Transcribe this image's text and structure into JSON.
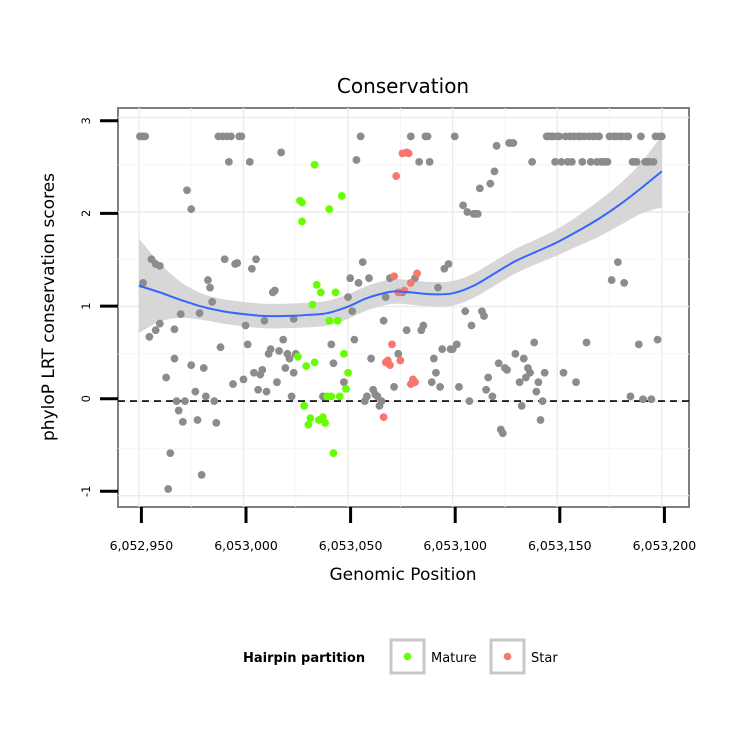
{
  "chart_data": {
    "type": "scatter",
    "title": "Conservation",
    "xlabel": "Genomic Position",
    "ylabel": "phyloP LRT conservation scores",
    "xlim": [
      6052940,
      6053213
    ],
    "ylim": [
      -1.12,
      3.1
    ],
    "x_ticks": [
      6052950,
      6053000,
      6053050,
      6053100,
      6053150,
      6053200
    ],
    "x_tick_labels": [
      "6,052,950",
      "6,053,000",
      "6,053,050",
      "6,053,100",
      "6,053,150",
      "6,053,200"
    ],
    "y_ticks": [
      -1,
      0,
      1,
      2,
      3
    ],
    "y_tick_labels": [
      "-1",
      "0",
      "1",
      "2",
      "3"
    ],
    "reference_line_y": 0,
    "grid": true,
    "legend": {
      "title": "Hairpin partition",
      "position": "bottom",
      "entries": [
        {
          "label": "Mature",
          "color": "#66ff00"
        },
        {
          "label": "Star",
          "color": "#f8766d"
        }
      ]
    },
    "colors": {
      "Other": "#8c8c8c",
      "Mature": "#66ff00",
      "Star": "#f8766d",
      "smooth_line": "#3366ff",
      "smooth_band": "#d0d0d0"
    },
    "series": [
      {
        "name": "Other",
        "points": [
          [
            6052950.5,
            2.8
          ],
          [
            6052951,
            2.8
          ],
          [
            6052952,
            2.8
          ],
          [
            6052953,
            2.8
          ],
          [
            6052952,
            1.25
          ],
          [
            6052955,
            0.68
          ],
          [
            6052956,
            1.5
          ],
          [
            6052958,
            1.45
          ],
          [
            6052958,
            0.75
          ],
          [
            6052960,
            1.43
          ],
          [
            6052960,
            0.82
          ],
          [
            6052963,
            0.25
          ],
          [
            6052964,
            -0.93
          ],
          [
            6052965,
            -0.55
          ],
          [
            6052967,
            0.45
          ],
          [
            6052967,
            0.76
          ],
          [
            6052968,
            0.0
          ],
          [
            6052969,
            -0.1
          ],
          [
            6052970,
            0.92
          ],
          [
            6052971,
            -0.22
          ],
          [
            6052972,
            0.0
          ],
          [
            6052973,
            2.23
          ],
          [
            6052975,
            2.03
          ],
          [
            6052975,
            0.38
          ],
          [
            6052977,
            0.1
          ],
          [
            6052978,
            -0.2
          ],
          [
            6052979,
            0.93
          ],
          [
            6052980,
            -0.78
          ],
          [
            6052981,
            0.35
          ],
          [
            6052982,
            0.05
          ],
          [
            6052983,
            1.28
          ],
          [
            6052984,
            1.2
          ],
          [
            6052985,
            1.05
          ],
          [
            6052986,
            0.0
          ],
          [
            6052987,
            -0.23
          ],
          [
            6052988,
            2.8
          ],
          [
            6052989,
            0.57
          ],
          [
            6052990,
            2.8
          ],
          [
            6052991,
            1.5
          ],
          [
            6052992,
            2.8
          ],
          [
            6052993,
            2.53
          ],
          [
            6052994,
            2.8
          ],
          [
            6052995,
            0.18
          ],
          [
            6052996,
            1.45
          ],
          [
            6052997,
            1.46
          ],
          [
            6052998,
            2.8
          ],
          [
            6052999,
            2.8
          ],
          [
            6053000,
            0.23
          ],
          [
            6053001,
            0.8
          ],
          [
            6053002,
            0.6
          ],
          [
            6053003,
            2.53
          ],
          [
            6053004,
            1.4
          ],
          [
            6053005,
            0.3
          ],
          [
            6053006,
            1.5
          ],
          [
            6053007,
            0.12
          ],
          [
            6053008,
            0.28
          ],
          [
            6053009,
            0.33
          ],
          [
            6053010,
            0.85
          ],
          [
            6053011,
            0.1
          ],
          [
            6053012,
            0.5
          ],
          [
            6053013,
            0.55
          ],
          [
            6053014,
            1.15
          ],
          [
            6053015,
            1.17
          ],
          [
            6053016,
            0.2
          ],
          [
            6053017,
            0.53
          ],
          [
            6053018,
            2.63
          ],
          [
            6053019,
            0.65
          ],
          [
            6053020,
            0.35
          ],
          [
            6053021,
            0.5
          ],
          [
            6053022,
            0.45
          ],
          [
            6053023,
            0.05
          ],
          [
            6053024,
            0.3
          ],
          [
            6053024,
            0.87
          ],
          [
            6053025,
            0.5
          ],
          [
            6053038,
            0.05
          ],
          [
            6053042,
            0.6
          ],
          [
            6053043,
            0.4
          ],
          [
            6053048,
            0.2
          ],
          [
            6053050,
            1.1
          ],
          [
            6053051,
            1.3
          ],
          [
            6053052,
            0.95
          ],
          [
            6053053,
            0.65
          ],
          [
            6053054,
            2.55
          ],
          [
            6053055,
            1.25
          ],
          [
            6053056,
            2.8
          ],
          [
            6053057,
            1.47
          ],
          [
            6053058,
            0.0
          ],
          [
            6053059,
            0.05
          ],
          [
            6053060,
            1.3
          ],
          [
            6053061,
            0.45
          ],
          [
            6053062,
            0.12
          ],
          [
            6053063,
            0.07
          ],
          [
            6053064,
            0.05
          ],
          [
            6053065,
            -0.05
          ],
          [
            6053066,
            0.0
          ],
          [
            6053067,
            0.85
          ],
          [
            6053068,
            1.1
          ],
          [
            6053070,
            1.3
          ],
          [
            6053072,
            0.15
          ],
          [
            6053074,
            0.5
          ],
          [
            6053076,
            1.15
          ],
          [
            6053078,
            0.75
          ],
          [
            6053080,
            2.8
          ],
          [
            6053082,
            1.3
          ],
          [
            6053084,
            2.53
          ],
          [
            6053085,
            0.75
          ],
          [
            6053086,
            0.8
          ],
          [
            6053087,
            2.8
          ],
          [
            6053088,
            2.8
          ],
          [
            6053089,
            2.53
          ],
          [
            6053090,
            0.2
          ],
          [
            6053091,
            0.45
          ],
          [
            6053092,
            0.3
          ],
          [
            6053093,
            1.2
          ],
          [
            6053094,
            0.15
          ],
          [
            6053095,
            0.55
          ],
          [
            6053096,
            1.4
          ],
          [
            6053098,
            1.45
          ],
          [
            6053099,
            0.55
          ],
          [
            6053100,
            0.55
          ],
          [
            6053101,
            2.8
          ],
          [
            6053102,
            0.6
          ],
          [
            6053103,
            0.15
          ],
          [
            6053105,
            2.07
          ],
          [
            6053106,
            0.95
          ],
          [
            6053107,
            2.0
          ],
          [
            6053108,
            0.0
          ],
          [
            6053109,
            0.8
          ],
          [
            6053110,
            1.98
          ],
          [
            6053111,
            1.98
          ],
          [
            6053112,
            1.98
          ],
          [
            6053113,
            2.25
          ],
          [
            6053114,
            0.95
          ],
          [
            6053115,
            0.9
          ],
          [
            6053116,
            0.12
          ],
          [
            6053117,
            0.25
          ],
          [
            6053118,
            2.3
          ],
          [
            6053119,
            0.05
          ],
          [
            6053120,
            2.43
          ],
          [
            6053121,
            2.7
          ],
          [
            6053122,
            0.4
          ],
          [
            6053123,
            -0.3
          ],
          [
            6053124,
            -0.34
          ],
          [
            6053125,
            0.35
          ],
          [
            6053126,
            0.33
          ],
          [
            6053127,
            2.73
          ],
          [
            6053128,
            2.73
          ],
          [
            6053129,
            2.73
          ],
          [
            6053130,
            0.5
          ],
          [
            6053132,
            0.2
          ],
          [
            6053133,
            -0.05
          ],
          [
            6053134,
            0.45
          ],
          [
            6053135,
            0.25
          ],
          [
            6053136,
            0.35
          ],
          [
            6053137,
            0.3
          ],
          [
            6053138,
            2.53
          ],
          [
            6053139,
            0.62
          ],
          [
            6053140,
            0.1
          ],
          [
            6053141,
            0.2
          ],
          [
            6053142,
            -0.2
          ],
          [
            6053143,
            0.0
          ],
          [
            6053144,
            0.3
          ],
          [
            6053145,
            2.8
          ],
          [
            6053146,
            2.8
          ],
          [
            6053147,
            2.8
          ],
          [
            6053148,
            2.8
          ],
          [
            6053149,
            2.53
          ],
          [
            6053150,
            2.8
          ],
          [
            6053151,
            2.8
          ],
          [
            6053152,
            2.53
          ],
          [
            6053153,
            0.3
          ],
          [
            6053154,
            2.8
          ],
          [
            6053155,
            2.53
          ],
          [
            6053156,
            2.8
          ],
          [
            6053157,
            2.53
          ],
          [
            6053158,
            2.8
          ],
          [
            6053159,
            0.2
          ],
          [
            6053160,
            2.8
          ],
          [
            6053161,
            2.8
          ],
          [
            6053162,
            2.53
          ],
          [
            6053163,
            2.8
          ],
          [
            6053164,
            0.62
          ],
          [
            6053165,
            2.8
          ],
          [
            6053166,
            2.53
          ],
          [
            6053167,
            2.8
          ],
          [
            6053168,
            2.8
          ],
          [
            6053169,
            2.53
          ],
          [
            6053170,
            2.8
          ],
          [
            6053171,
            2.53
          ],
          [
            6053172,
            2.53
          ],
          [
            6053173,
            2.53
          ],
          [
            6053174,
            2.53
          ],
          [
            6053175,
            2.8
          ],
          [
            6053176,
            1.28
          ],
          [
            6053177,
            2.8
          ],
          [
            6053178,
            2.8
          ],
          [
            6053179,
            1.47
          ],
          [
            6053180,
            2.8
          ],
          [
            6053181,
            2.8
          ],
          [
            6053182,
            1.25
          ],
          [
            6053183,
            2.8
          ],
          [
            6053184,
            2.8
          ],
          [
            6053185,
            0.05
          ],
          [
            6053186,
            2.53
          ],
          [
            6053187,
            2.53
          ],
          [
            6053188,
            2.53
          ],
          [
            6053189,
            0.6
          ],
          [
            6053190,
            2.8
          ],
          [
            6053191,
            0.02
          ],
          [
            6053192,
            2.53
          ],
          [
            6053193,
            2.53
          ],
          [
            6053194,
            2.53
          ],
          [
            6053195,
            0.02
          ],
          [
            6053196,
            2.53
          ],
          [
            6053197,
            2.8
          ],
          [
            6053198,
            0.65
          ],
          [
            6053199,
            2.8
          ],
          [
            6053200,
            2.8
          ]
        ]
      },
      {
        "name": "Mature",
        "points": [
          [
            6053026,
            0.47
          ],
          [
            6053027,
            2.12
          ],
          [
            6053028,
            1.9
          ],
          [
            6053028,
            2.1
          ],
          [
            6053029,
            -0.05
          ],
          [
            6053030,
            0.37
          ],
          [
            6053031,
            -0.25
          ],
          [
            6053032,
            -0.18
          ],
          [
            6053033,
            1.02
          ],
          [
            6053034,
            0.41
          ],
          [
            6053034,
            2.5
          ],
          [
            6053035,
            1.23
          ],
          [
            6053036,
            -0.2
          ],
          [
            6053037,
            1.15
          ],
          [
            6053038,
            -0.17
          ],
          [
            6053039,
            -0.23
          ],
          [
            6053040,
            0.05
          ],
          [
            6053041,
            0.85
          ],
          [
            6053041,
            2.03
          ],
          [
            6053042,
            0.05
          ],
          [
            6053043,
            -0.55
          ],
          [
            6053044,
            1.15
          ],
          [
            6053045,
            0.85
          ],
          [
            6053046,
            0.05
          ],
          [
            6053047,
            2.17
          ],
          [
            6053048,
            0.5
          ],
          [
            6053049,
            0.13
          ],
          [
            6053050,
            0.3
          ]
        ]
      },
      {
        "name": "Star",
        "points": [
          [
            6053067,
            -0.17
          ],
          [
            6053068,
            0.41
          ],
          [
            6053069,
            0.43
          ],
          [
            6053070,
            0.38
          ],
          [
            6053071,
            0.6
          ],
          [
            6053072,
            1.32
          ],
          [
            6053073,
            2.38
          ],
          [
            6053074,
            1.15
          ],
          [
            6053075,
            0.43
          ],
          [
            6053076,
            2.62
          ],
          [
            6053077,
            1.17
          ],
          [
            6053078,
            2.63
          ],
          [
            6053079,
            2.62
          ],
          [
            6053080,
            1.25
          ],
          [
            6053080,
            0.18
          ],
          [
            6053081,
            0.23
          ],
          [
            6053082,
            0.2
          ],
          [
            6053083,
            1.35
          ]
        ]
      }
    ],
    "smooth": {
      "x": [
        6052950,
        6052960,
        6052970,
        6052980,
        6052990,
        6053000,
        6053010,
        6053020,
        6053030,
        6053040,
        6053050,
        6053058,
        6053065,
        6053072,
        6053080,
        6053090,
        6053100,
        6053110,
        6053120,
        6053130,
        6053140,
        6053150,
        6053160,
        6053170,
        6053180,
        6053190,
        6053200
      ],
      "y": [
        1.22,
        1.15,
        1.07,
        1.0,
        0.95,
        0.92,
        0.9,
        0.9,
        0.91,
        0.93,
        1.0,
        1.08,
        1.13,
        1.16,
        1.15,
        1.13,
        1.14,
        1.22,
        1.35,
        1.48,
        1.58,
        1.68,
        1.8,
        1.93,
        2.08,
        2.25,
        2.43
      ],
      "lower": [
        0.72,
        0.84,
        0.88,
        0.86,
        0.82,
        0.79,
        0.77,
        0.77,
        0.78,
        0.8,
        0.87,
        0.95,
        1.0,
        1.03,
        1.02,
        1.0,
        1.01,
        1.09,
        1.22,
        1.35,
        1.45,
        1.54,
        1.64,
        1.74,
        1.86,
        1.98,
        2.05
      ],
      "upper": [
        1.72,
        1.46,
        1.26,
        1.14,
        1.08,
        1.05,
        1.03,
        1.03,
        1.04,
        1.06,
        1.13,
        1.21,
        1.26,
        1.29,
        1.28,
        1.26,
        1.27,
        1.35,
        1.48,
        1.61,
        1.71,
        1.82,
        1.96,
        2.12,
        2.3,
        2.52,
        2.81
      ]
    }
  }
}
